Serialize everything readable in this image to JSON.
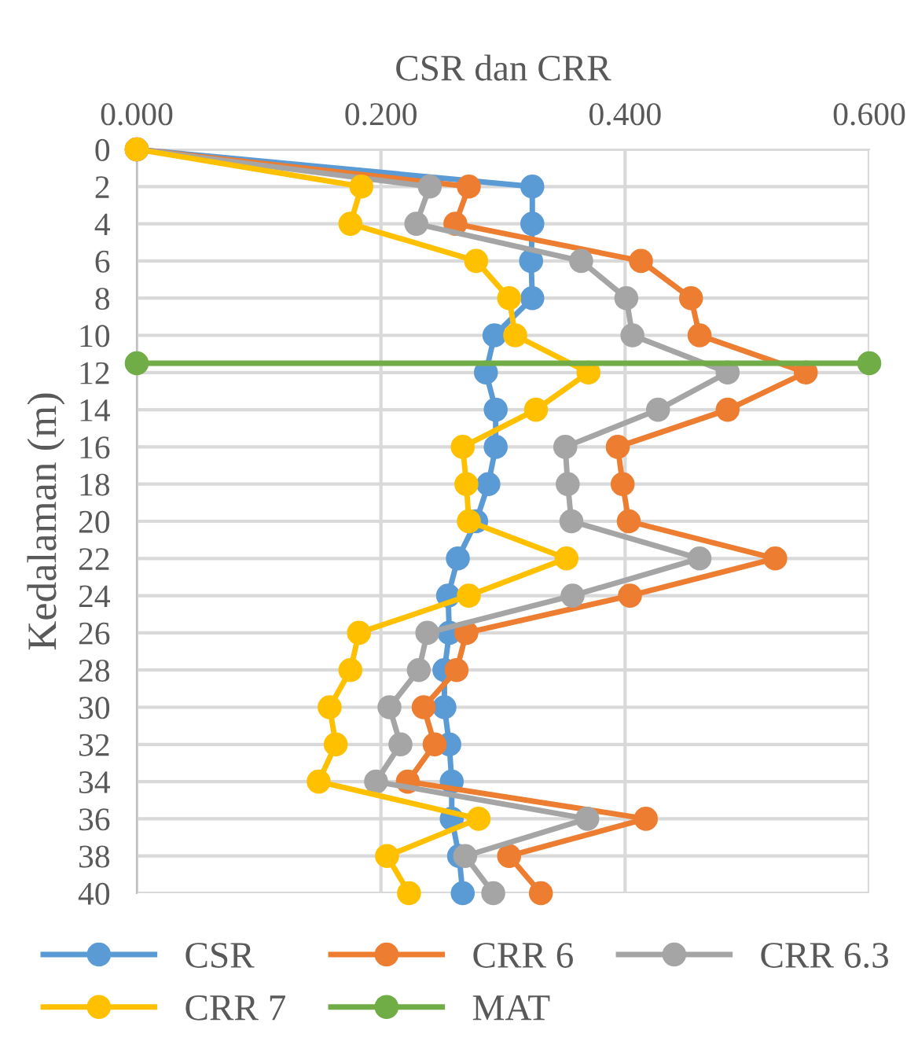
{
  "chart_data": {
    "type": "line",
    "xlabel": "CSR dan CRR",
    "ylabel": "Kedalaman (m)",
    "series": [
      {
        "name": "CSR",
        "color": "#5b9bd5",
        "x": [
          0,
          0.324,
          0.324,
          0.323,
          0.324,
          0.293,
          0.286,
          0.294,
          0.294,
          0.288,
          0.278,
          0.263,
          0.255,
          0.256,
          0.252,
          0.252,
          0.256,
          0.258,
          0.258,
          0.264,
          0.267
        ],
        "values": [
          0,
          2,
          4,
          6,
          8,
          10,
          12,
          14,
          16,
          18,
          20,
          22,
          24,
          26,
          28,
          30,
          32,
          34,
          36,
          38,
          40
        ]
      },
      {
        "name": "CRR 6",
        "color": "#ed7d31",
        "x": [
          0,
          0.272,
          0.261,
          0.413,
          0.454,
          0.461,
          0.548,
          0.484,
          0.394,
          0.398,
          0.403,
          0.523,
          0.404,
          0.27,
          0.262,
          0.235,
          0.244,
          0.222,
          0.417,
          0.305,
          0.331
        ],
        "values": [
          0,
          2,
          4,
          6,
          8,
          10,
          12,
          14,
          16,
          18,
          20,
          22,
          24,
          26,
          28,
          30,
          32,
          34,
          36,
          38,
          40
        ]
      },
      {
        "name": "CRR 6.3",
        "color": "#a5a5a5",
        "x": [
          0,
          0.24,
          0.229,
          0.364,
          0.401,
          0.406,
          0.484,
          0.427,
          0.351,
          0.353,
          0.356,
          0.461,
          0.357,
          0.238,
          0.231,
          0.207,
          0.216,
          0.196,
          0.369,
          0.269,
          0.292
        ],
        "values": [
          0,
          2,
          4,
          6,
          8,
          10,
          12,
          14,
          16,
          18,
          20,
          22,
          24,
          26,
          28,
          30,
          32,
          34,
          36,
          38,
          40
        ]
      },
      {
        "name": "CRR 7",
        "color": "#ffc000",
        "x": [
          0,
          0.184,
          0.175,
          0.278,
          0.305,
          0.31,
          0.37,
          0.327,
          0.267,
          0.27,
          0.272,
          0.352,
          0.272,
          0.182,
          0.175,
          0.158,
          0.163,
          0.149,
          0.28,
          0.205,
          0.223
        ],
        "values": [
          0,
          2,
          4,
          6,
          8,
          10,
          12,
          14,
          16,
          18,
          20,
          22,
          24,
          26,
          28,
          30,
          32,
          34,
          36,
          38,
          40
        ]
      },
      {
        "name": "MAT",
        "color": "#70ad47",
        "x": [
          0,
          0.6
        ],
        "values": [
          11.5,
          11.5
        ]
      }
    ],
    "xlim": [
      0,
      0.6
    ],
    "xticks": [
      {
        "value": 0,
        "label": "0.000"
      },
      {
        "value": 0.2,
        "label": "0.200"
      },
      {
        "value": 0.4,
        "label": "0.400"
      },
      {
        "value": 0.6,
        "label": "0.600"
      }
    ],
    "ylim": [
      40,
      0
    ],
    "yticks": [
      0,
      2,
      4,
      6,
      8,
      10,
      12,
      14,
      16,
      18,
      20,
      22,
      24,
      26,
      28,
      30,
      32,
      34,
      36,
      38,
      40
    ],
    "grid": true,
    "legend": "bottom",
    "marker": "circle",
    "line_style": "solid"
  }
}
